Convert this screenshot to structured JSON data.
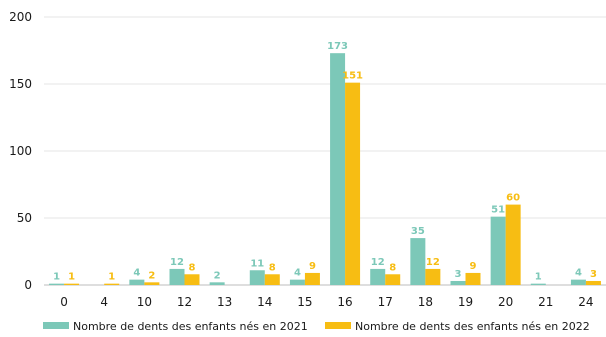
{
  "chart_data": {
    "type": "bar",
    "title": "",
    "xlabel": "",
    "ylabel": "",
    "ylim": [
      0,
      200
    ],
    "yticks": [
      0,
      50,
      100,
      150,
      200
    ],
    "grid": true,
    "legend_position": "bottom",
    "categories": [
      "0",
      "4",
      "10",
      "12",
      "13",
      "14",
      "15",
      "16",
      "17",
      "18",
      "19",
      "20",
      "21",
      "24"
    ],
    "series": [
      {
        "name": "Nombre de dents des enfants nés en 2021",
        "color": "#7cc8b8",
        "values": [
          1,
          null,
          4,
          12,
          2,
          11,
          4,
          173,
          12,
          35,
          3,
          51,
          1,
          4
        ]
      },
      {
        "name": "Nombre de dents des enfants nés en 2022",
        "color": "#f7bd13",
        "values": [
          1,
          1,
          2,
          8,
          null,
          8,
          9,
          151,
          8,
          12,
          9,
          60,
          null,
          3
        ]
      }
    ]
  }
}
